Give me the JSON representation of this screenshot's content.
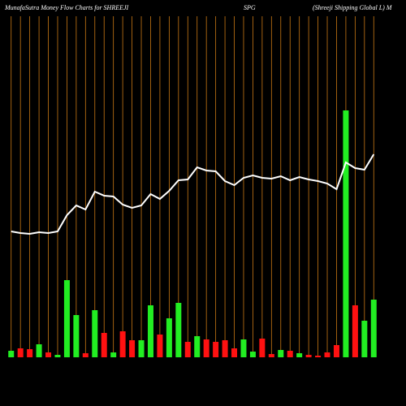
{
  "chart_data": {
    "type": "bar-line",
    "title": "MunafaSutra  Money Flow  Charts for SHREEJI",
    "symbol": "SPG",
    "company": "(Shreeji   Shipping Global L) M",
    "categories": [
      null,
      null,
      null,
      null,
      null,
      null,
      null,
      null,
      null,
      null,
      null,
      null,
      null,
      null,
      null,
      null,
      null,
      null,
      null,
      null,
      null,
      null,
      null,
      null,
      null,
      null,
      null,
      null,
      null,
      null,
      null,
      null,
      null,
      null,
      null,
      null,
      null,
      null,
      null,
      null
    ],
    "ylim": [
      0,
      440
    ],
    "series": [
      {
        "kind": "bar",
        "values": [
          8,
          11,
          10,
          16,
          6,
          3,
          95,
          52,
          5,
          58,
          30,
          6,
          32,
          21,
          21,
          64,
          28,
          48,
          67,
          19,
          26,
          22,
          19,
          21,
          11,
          22,
          7,
          23,
          4,
          9,
          8,
          5,
          3,
          2,
          6,
          15,
          304,
          64,
          45,
          71
        ],
        "colors": [
          "#22ee22",
          "#ff1111",
          "#ff1111",
          "#22ee22",
          "#ff1111",
          "#22ee22",
          "#22ee22",
          "#22ee22",
          "#ff1111",
          "#22ee22",
          "#ff1111",
          "#22ee22",
          "#ff1111",
          "#ff1111",
          "#22ee22",
          "#22ee22",
          "#ff1111",
          "#22ee22",
          "#22ee22",
          "#ff1111",
          "#22ee22",
          "#ff1111",
          "#ff1111",
          "#ff1111",
          "#ff1111",
          "#22ee22",
          "#22ee22",
          "#ff1111",
          "#ff1111",
          "#22ee22",
          "#ff1111",
          "#22ee22",
          "#ff1111",
          "#ff1111",
          "#ff1111",
          "#ff1111",
          "#22ee22",
          "#ff1111",
          "#22ee22",
          "#22ee22"
        ]
      },
      {
        "kind": "line",
        "color": "#ffffff",
        "values": [
          155,
          153,
          152,
          154,
          153,
          155,
          175,
          187,
          182,
          204,
          199,
          198,
          188,
          184,
          187,
          201,
          195,
          205,
          218,
          219,
          234,
          230,
          229,
          217,
          212,
          221,
          224,
          221,
          220,
          223,
          218,
          222,
          219,
          217,
          214,
          207,
          240,
          233,
          231,
          250
        ]
      }
    ],
    "gridline_color": "#c87814"
  }
}
